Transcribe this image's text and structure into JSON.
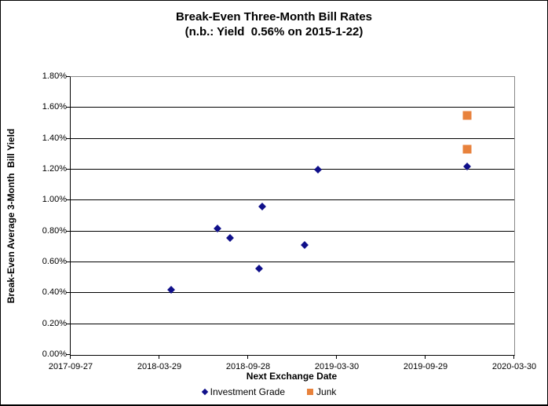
{
  "chart_data": {
    "type": "scatter",
    "title": "Break-Even Three-Month Bill Rates",
    "subtitle": "(n.b.: Yield  0.56% on 2015-1-22)",
    "xlabel": "Next Exchange Date",
    "ylabel": "Break-Even Average 3-Month  Bill Yield",
    "x_ticks": [
      "2017-09-27",
      "2018-03-29",
      "2018-09-28",
      "2019-03-30",
      "2019-09-29",
      "2020-03-30"
    ],
    "x_range": [
      "2017-09-27",
      "2020-03-30"
    ],
    "y_ticks": [
      "0.00%",
      "0.20%",
      "0.40%",
      "0.60%",
      "0.80%",
      "1.00%",
      "1.20%",
      "1.40%",
      "1.60%",
      "1.80%"
    ],
    "ylim_percent": [
      0,
      1.8
    ],
    "grid": "horizontal",
    "legend_position": "bottom",
    "colors": {
      "investment_grade": "#10108A",
      "junk": "#E8823C",
      "gridline": "#000000",
      "plot_border": "#888888"
    },
    "series": [
      {
        "name": "Investment Grade",
        "marker": "diamond",
        "color": "#10108A",
        "points": [
          {
            "x": "2018-04-23",
            "y": 0.42
          },
          {
            "x": "2018-07-27",
            "y": 0.82
          },
          {
            "x": "2018-08-21",
            "y": 0.76
          },
          {
            "x": "2018-10-20",
            "y": 0.56
          },
          {
            "x": "2018-10-27",
            "y": 0.96
          },
          {
            "x": "2019-01-22",
            "y": 0.71
          },
          {
            "x": "2019-02-19",
            "y": 1.2
          },
          {
            "x": "2019-12-24",
            "y": 1.22
          }
        ]
      },
      {
        "name": "Junk",
        "marker": "square",
        "color": "#E8823C",
        "points": [
          {
            "x": "2019-12-24",
            "y": 1.33
          },
          {
            "x": "2019-12-24",
            "y": 1.55
          }
        ]
      }
    ]
  }
}
